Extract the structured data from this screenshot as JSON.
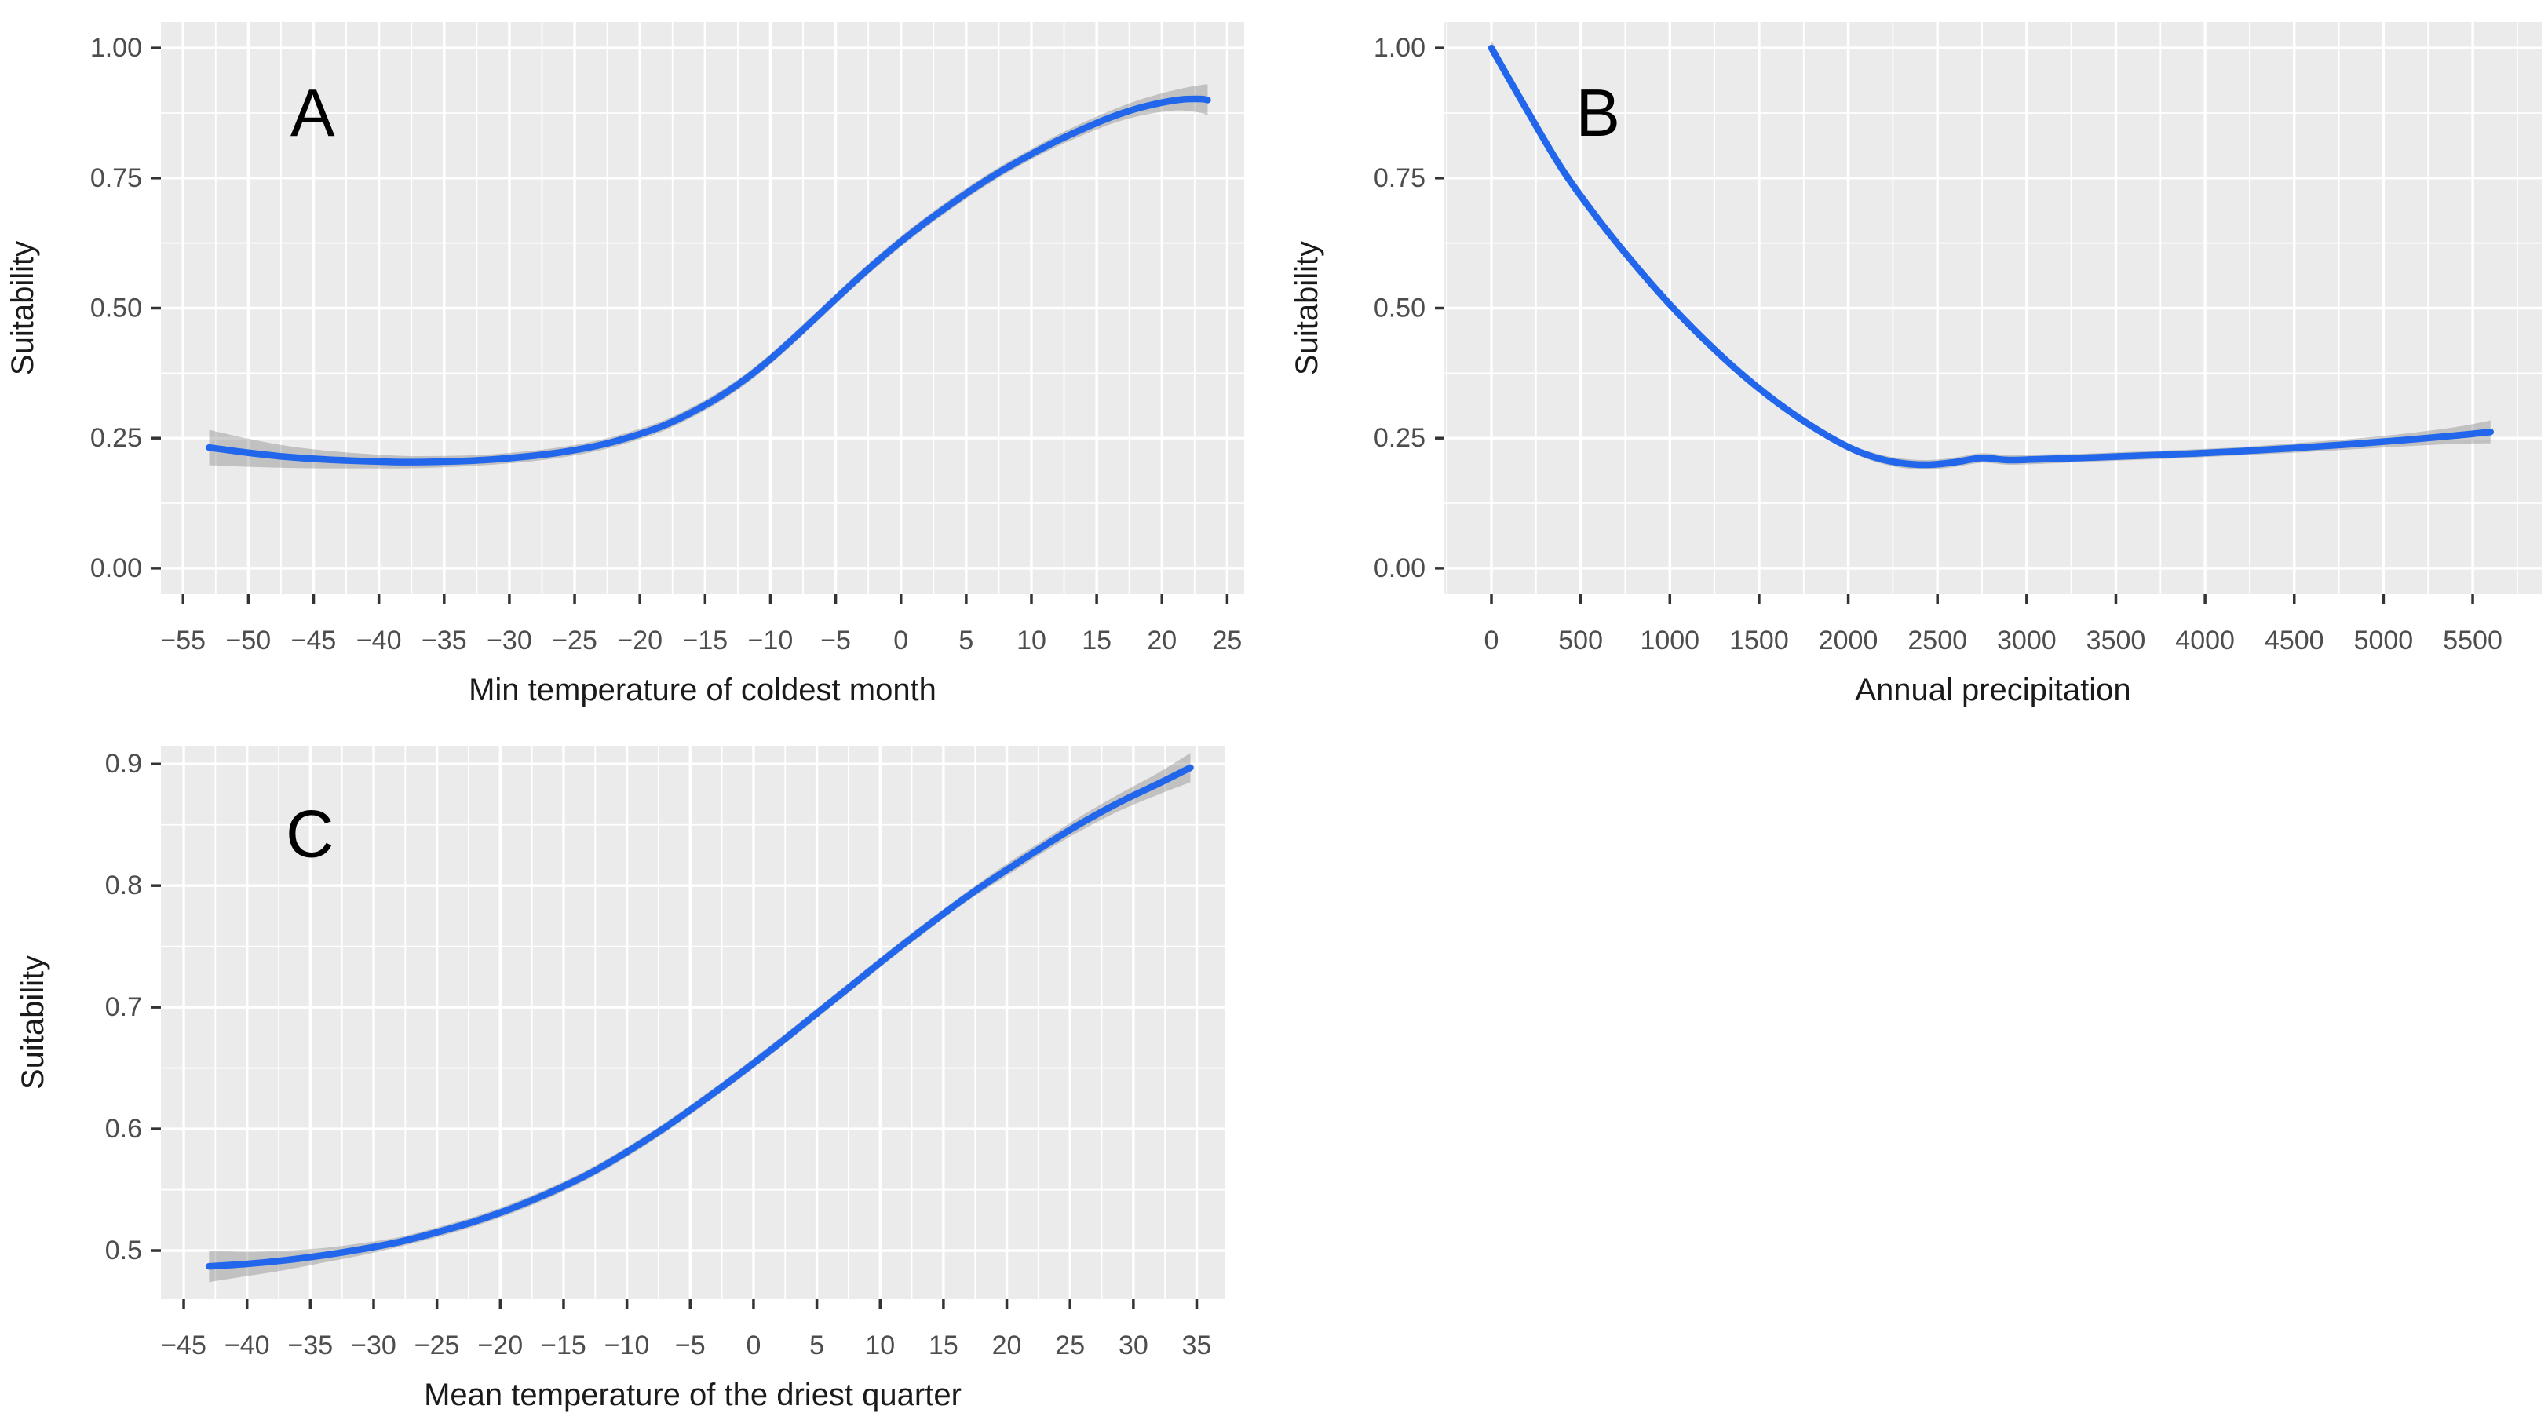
{
  "figure": {
    "panel_bg_color": "#EBEBEB",
    "grid_color": "#FFFFFF",
    "line_color": "#2166EB",
    "ribbon_color": "rgba(125,125,125,0.38)",
    "tick_label_color": "#4D4D4D",
    "axis_title_color": "#1A1A1A",
    "tick_mark_color": "#333333",
    "panel_letter_color": "#000000"
  },
  "chart_data": [
    {
      "type": "line",
      "panel_label": "A",
      "xlabel": "Min temperature of coldest month",
      "ylabel": "Suitability",
      "legend": "none",
      "grid": "on",
      "xlim": [
        -56.7,
        26.3
      ],
      "ylim": [
        -0.05,
        1.05
      ],
      "x_ticks": [
        -55,
        -50,
        -45,
        -40,
        -35,
        -30,
        -25,
        -20,
        -15,
        -10,
        -5,
        0,
        5,
        10,
        15,
        20,
        25
      ],
      "x_tick_labels": [
        "−55",
        "−50",
        "−45",
        "−40",
        "−35",
        "−30",
        "−25",
        "−20",
        "−15",
        "−10",
        "−5",
        "0",
        "5",
        "10",
        "15",
        "20",
        "25"
      ],
      "y_ticks": [
        0.0,
        0.25,
        0.5,
        0.75,
        1.0
      ],
      "y_tick_labels": [
        "0.00",
        "0.25",
        "0.50",
        "0.75",
        "1.00"
      ],
      "x": [
        -53,
        -50,
        -47,
        -44,
        -41,
        -38,
        -35,
        -32,
        -29,
        -26,
        -23,
        -20,
        -18,
        -16,
        -14,
        -12,
        -10,
        -8,
        -6,
        -4,
        -2,
        0,
        2,
        4,
        6,
        8,
        10,
        12,
        14,
        16,
        18,
        20,
        21.5,
        23,
        23.5
      ],
      "y": [
        0.232,
        0.222,
        0.214,
        0.209,
        0.206,
        0.204,
        0.205,
        0.208,
        0.214,
        0.223,
        0.237,
        0.258,
        0.276,
        0.3,
        0.328,
        0.362,
        0.402,
        0.447,
        0.494,
        0.541,
        0.586,
        0.628,
        0.667,
        0.703,
        0.737,
        0.768,
        0.796,
        0.822,
        0.845,
        0.866,
        0.883,
        0.895,
        0.901,
        0.902,
        0.9
      ],
      "band_halfwidth": [
        0.034,
        0.027,
        0.021,
        0.017,
        0.014,
        0.012,
        0.011,
        0.01,
        0.01,
        0.01,
        0.01,
        0.01,
        0.01,
        0.01,
        0.01,
        0.01,
        0.01,
        0.01,
        0.01,
        0.01,
        0.01,
        0.01,
        0.01,
        0.01,
        0.01,
        0.01,
        0.01,
        0.011,
        0.012,
        0.013,
        0.015,
        0.018,
        0.021,
        0.027,
        0.03
      ]
    },
    {
      "type": "line",
      "panel_label": "B",
      "xlabel": "Annual precipitation",
      "ylabel": "Suitability",
      "legend": "none",
      "grid": "on",
      "xlim": [
        -264,
        5887
      ],
      "ylim": [
        -0.05,
        1.05
      ],
      "x_ticks": [
        0,
        500,
        1000,
        1500,
        2000,
        2500,
        3000,
        3500,
        4000,
        4500,
        5000,
        5500
      ],
      "x_tick_labels": [
        "0",
        "500",
        "1000",
        "1500",
        "2000",
        "2500",
        "3000",
        "3500",
        "4000",
        "4500",
        "5000",
        "5500"
      ],
      "y_ticks": [
        0.0,
        0.25,
        0.5,
        0.75,
        1.0
      ],
      "y_tick_labels": [
        "0.00",
        "0.25",
        "0.50",
        "0.75",
        "1.00"
      ],
      "x": [
        0,
        200,
        400,
        600,
        800,
        1000,
        1200,
        1400,
        1600,
        1800,
        2000,
        2150,
        2300,
        2450,
        2600,
        2750,
        2900,
        3100,
        3300,
        3600,
        3900,
        4200,
        4500,
        4800,
        5100,
        5400,
        5600
      ],
      "y": [
        1.0,
        0.88,
        0.765,
        0.67,
        0.585,
        0.507,
        0.437,
        0.374,
        0.319,
        0.272,
        0.233,
        0.213,
        0.202,
        0.199,
        0.204,
        0.212,
        0.208,
        0.21,
        0.212,
        0.216,
        0.22,
        0.225,
        0.231,
        0.238,
        0.246,
        0.255,
        0.262
      ],
      "band_halfwidth": [
        0.014,
        0.008,
        0.007,
        0.006,
        0.006,
        0.006,
        0.006,
        0.006,
        0.006,
        0.006,
        0.007,
        0.008,
        0.009,
        0.009,
        0.009,
        0.009,
        0.009,
        0.009,
        0.008,
        0.008,
        0.008,
        0.008,
        0.009,
        0.01,
        0.012,
        0.016,
        0.022
      ]
    },
    {
      "type": "line",
      "panel_label": "C",
      "xlabel": "Mean temperature of the driest quarter",
      "ylabel": "Suitability",
      "legend": "none",
      "grid": "on",
      "xlim": [
        -46.8,
        37.2
      ],
      "ylim": [
        0.46,
        0.915
      ],
      "x_ticks": [
        -45,
        -40,
        -35,
        -30,
        -25,
        -20,
        -15,
        -10,
        -5,
        0,
        5,
        10,
        15,
        20,
        25,
        30,
        35
      ],
      "x_tick_labels": [
        "−45",
        "−40",
        "−35",
        "−30",
        "−25",
        "−20",
        "−15",
        "−10",
        "−5",
        "0",
        "5",
        "10",
        "15",
        "20",
        "25",
        "30",
        "35"
      ],
      "y_ticks": [
        0.5,
        0.6,
        0.7,
        0.8,
        0.9
      ],
      "y_tick_labels": [
        "0.5",
        "0.6",
        "0.7",
        "0.8",
        "0.9"
      ],
      "x": [
        -43,
        -40,
        -37,
        -34,
        -31,
        -28,
        -25,
        -22,
        -19,
        -16,
        -13,
        -10,
        -7,
        -4,
        -1,
        2,
        5,
        8,
        11,
        14,
        17,
        20,
        23,
        26,
        29,
        32,
        34.5
      ],
      "y": [
        0.487,
        0.489,
        0.492,
        0.496,
        0.501,
        0.507,
        0.515,
        0.524,
        0.535,
        0.548,
        0.563,
        0.581,
        0.601,
        0.623,
        0.646,
        0.67,
        0.695,
        0.72,
        0.745,
        0.769,
        0.792,
        0.813,
        0.833,
        0.852,
        0.869,
        0.884,
        0.897
      ],
      "band_halfwidth": [
        0.013,
        0.01,
        0.008,
        0.006,
        0.005,
        0.004,
        0.004,
        0.004,
        0.004,
        0.004,
        0.004,
        0.004,
        0.004,
        0.004,
        0.004,
        0.004,
        0.004,
        0.004,
        0.004,
        0.004,
        0.004,
        0.005,
        0.005,
        0.006,
        0.007,
        0.009,
        0.012
      ]
    }
  ]
}
